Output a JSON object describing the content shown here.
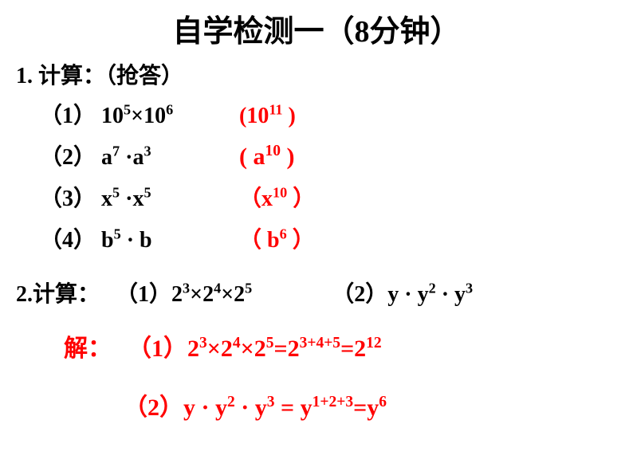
{
  "title": "自学检测一（8分钟）",
  "q1": {
    "header": "1.  计算：（抢答）",
    "items": [
      {
        "label_open": "（1） ",
        "base1": "10",
        "exp1": "5",
        "op": "×",
        "base2": "10",
        "exp2": "6",
        "ans_open": "(",
        "ans_base": "10",
        "ans_exp": "11",
        "ans_close": " )"
      },
      {
        "label_open": "（2） ",
        "base1": "a",
        "exp1": "7",
        "op": " ·",
        "base2": "a",
        "exp2": "3",
        "ans_open": "(  ",
        "ans_base": "a",
        "ans_exp": "10",
        "ans_close": " )"
      },
      {
        "label_open": "（3）  ",
        "base1": "x",
        "exp1": "5",
        "op": " ·",
        "base2": "x",
        "exp2": "5",
        "ans_open": "（",
        "ans_base": "x",
        "ans_exp": "10",
        "ans_close": " ）"
      },
      {
        "label_open": "（4）  ",
        "base1": "b",
        "exp1": "5",
        "op": " · ",
        "base2": "b",
        "exp2": "",
        "ans_open": "（ ",
        "ans_base": "b",
        "ans_exp": "6",
        "ans_close": "  ）"
      }
    ]
  },
  "q2": {
    "header_prefix": "2.计算：",
    "p1_label": "（1）",
    "p1_b1": "2",
    "p1_e1": "3",
    "p1_op1": "×",
    "p1_b2": "2",
    "p1_e2": "4",
    "p1_op2": "×",
    "p1_b3": "2",
    "p1_e3": "5",
    "p2_label": "（2）",
    "p2_b1": "y",
    "p2_op1": " · ",
    "p2_b2": "y",
    "p2_e2": "2",
    "p2_op2": " · ",
    "p2_b3": "y",
    "p2_e3": "3"
  },
  "solution": {
    "label": "解：",
    "s1_label": "（1）",
    "s1_b1": "2",
    "s1_e1": "3",
    "s1_op1": "×",
    "s1_b2": "2",
    "s1_e2": "4",
    "s1_op2": "×",
    "s1_b3": "2",
    "s1_e3": "5",
    "s1_eq1": "=",
    "s1_rb1": "2",
    "s1_re1": "3+4+5",
    "s1_eq2": "=",
    "s1_rb2": "2",
    "s1_re2": "12",
    "s2_label": "（2）",
    "s2_b1": "y",
    "s2_op1": " · ",
    "s2_b2": "y",
    "s2_e2": "2",
    "s2_op2": " · ",
    "s2_b3": "y",
    "s2_e3": "3",
    "s2_eq1": " = ",
    "s2_rb1": "y",
    "s2_re1": "1+2+3",
    "s2_eq2": "=",
    "s2_rb2": "y",
    "s2_re2": "6"
  },
  "colors": {
    "text": "#000000",
    "answer": "#ff0000",
    "background": "#ffffff"
  },
  "fonts": {
    "title_size": 38,
    "body_size": 28,
    "weight": "bold"
  }
}
